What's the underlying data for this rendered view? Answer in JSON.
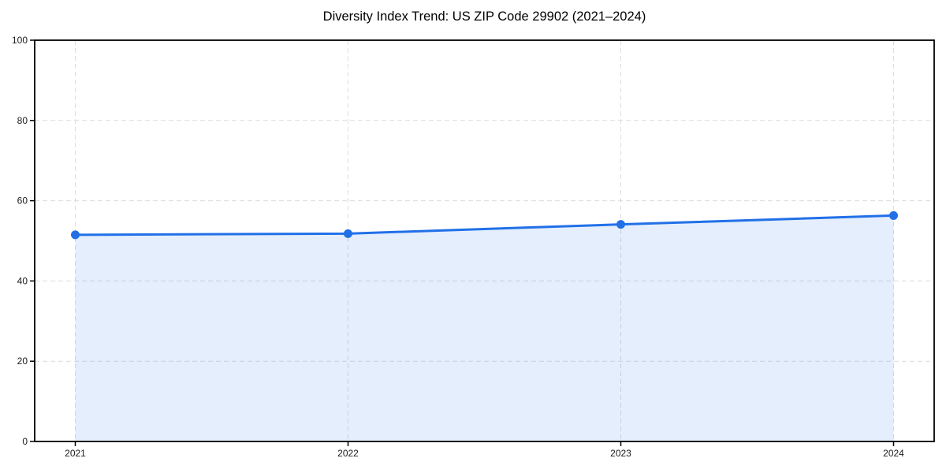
{
  "chart_data": {
    "type": "line",
    "title": "Diversity Index Trend: US ZIP Code 29902 (2021–2024)",
    "xlabel": "",
    "ylabel": "",
    "categories": [
      "2021",
      "2022",
      "2023",
      "2024"
    ],
    "series": [
      {
        "name": "Diversity Index",
        "values": [
          51.5,
          51.8,
          54.1,
          56.3
        ]
      }
    ],
    "ylim": [
      0,
      100
    ],
    "yticks": [
      0,
      20,
      40,
      60,
      80,
      100
    ],
    "ytick_labels": [
      "0",
      "20",
      "40",
      "60",
      "80",
      "100"
    ],
    "grid": "dashed, horizontal at y-ticks and vertical at each year",
    "legend": "none",
    "marker": "circle",
    "area_fill": true,
    "colors": {
      "line": "#2170e8",
      "marker": "#2170e8",
      "fill": "rgba(33,112,232,0.12)",
      "grid": "#dcdcdc",
      "axis": "#000000",
      "background": "#ffffff",
      "text": "#1a1a1a"
    }
  }
}
